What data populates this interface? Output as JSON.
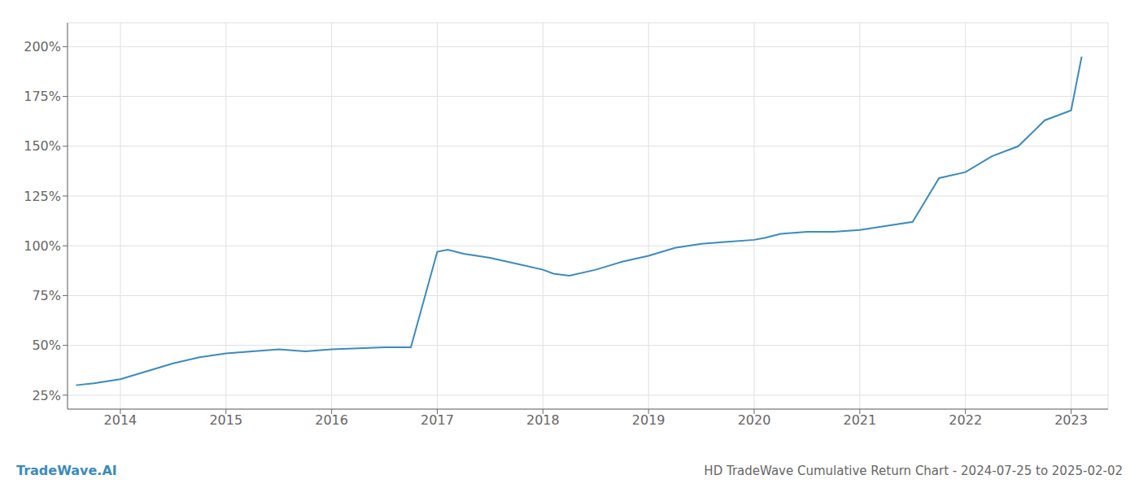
{
  "chart_data": {
    "type": "line",
    "title": "HD TradeWave Cumulative Return Chart - 2024-07-25 to 2025-02-02",
    "annotations": [
      "TradeWave.AI"
    ],
    "color": "#3a8bbf",
    "grid": true,
    "x": [
      2013.58,
      2013.75,
      2014.0,
      2014.25,
      2014.5,
      2014.75,
      2015.0,
      2015.25,
      2015.5,
      2015.75,
      2016.0,
      2016.25,
      2016.5,
      2016.58,
      2016.75,
      2017.0,
      2017.1,
      2017.25,
      2017.5,
      2017.75,
      2018.0,
      2018.1,
      2018.25,
      2018.5,
      2018.75,
      2019.0,
      2019.25,
      2019.5,
      2019.75,
      2020.0,
      2020.1,
      2020.25,
      2020.5,
      2020.75,
      2021.0,
      2021.25,
      2021.5,
      2021.75,
      2022.0,
      2022.25,
      2022.5,
      2022.75,
      2023.0,
      2023.1
    ],
    "values": [
      30,
      31,
      33,
      37,
      41,
      44,
      46,
      47,
      48,
      47,
      48,
      48.5,
      49,
      49,
      49,
      97,
      98,
      96,
      94,
      91,
      88,
      86,
      85,
      88,
      92,
      95,
      99,
      101,
      102,
      103,
      104,
      106,
      107,
      107,
      108,
      110,
      112,
      134,
      137,
      145,
      150,
      163,
      168,
      195
    ],
    "xlim": [
      2013.5,
      2023.35
    ],
    "xticks": [
      2014,
      2015,
      2016,
      2017,
      2018,
      2019,
      2020,
      2021,
      2022,
      2023
    ],
    "ylim": [
      18,
      212
    ],
    "yticks": [
      {
        "value": 25,
        "label": "25%"
      },
      {
        "value": 50,
        "label": "50%"
      },
      {
        "value": 75,
        "label": "75%"
      },
      {
        "value": 100,
        "label": "100%"
      },
      {
        "value": 125,
        "label": "125%"
      },
      {
        "value": 150,
        "label": "150%"
      },
      {
        "value": 175,
        "label": "175%"
      },
      {
        "value": 200,
        "label": "200%"
      }
    ]
  }
}
